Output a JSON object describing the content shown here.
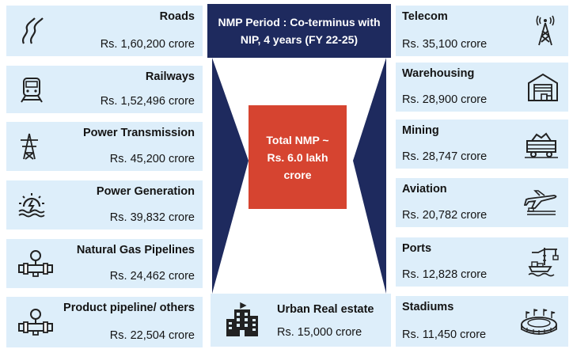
{
  "header": {
    "text": "NMP Period : Co-terminus with NIP,  4 years (FY 22-25)"
  },
  "center": {
    "text": "Total NMP ~ Rs. 6.0  lakh crore"
  },
  "left_sectors": [
    {
      "name": "Roads",
      "value": "Rs. 1,60,200 crore",
      "icon": "road-icon"
    },
    {
      "name": "Railways",
      "value": "Rs. 1,52,496 crore",
      "icon": "train-icon"
    },
    {
      "name": "Power Transmission",
      "value": "Rs. 45,200 crore",
      "icon": "transmission-tower-icon"
    },
    {
      "name": "Power Generation",
      "value": "Rs. 39,832 crore",
      "icon": "power-plant-icon"
    },
    {
      "name": "Natural Gas Pipelines",
      "value": "Rs. 24,462 crore",
      "icon": "gas-pipeline-icon"
    },
    {
      "name": "Product pipeline/ others",
      "value": "Rs. 22,504 crore",
      "icon": "product-pipeline-icon"
    }
  ],
  "right_sectors": [
    {
      "name": "Telecom",
      "value": "Rs. 35,100 crore",
      "icon": "telecom-tower-icon"
    },
    {
      "name": "Warehousing",
      "value": "Rs. 28,900 crore",
      "icon": "warehouse-icon"
    },
    {
      "name": "Mining",
      "value": "Rs. 28,747 crore",
      "icon": "mining-cart-icon"
    },
    {
      "name": "Aviation",
      "value": "Rs. 20,782 crore",
      "icon": "airplane-icon"
    },
    {
      "name": "Ports",
      "value": "Rs. 12,828 crore",
      "icon": "port-crane-icon"
    },
    {
      "name": "Stadiums",
      "value": "Rs. 11,450 crore",
      "icon": "stadium-icon"
    }
  ],
  "bottom_sector": {
    "name": "Urban Real estate",
    "value": "Rs. 15,000 crore",
    "icon": "building-icon"
  },
  "colors": {
    "box_fill": "#ddeefa",
    "header_fill": "#1e2a5e",
    "center_fill": "#d64430",
    "arrow_fill": "#1e2a5e"
  }
}
